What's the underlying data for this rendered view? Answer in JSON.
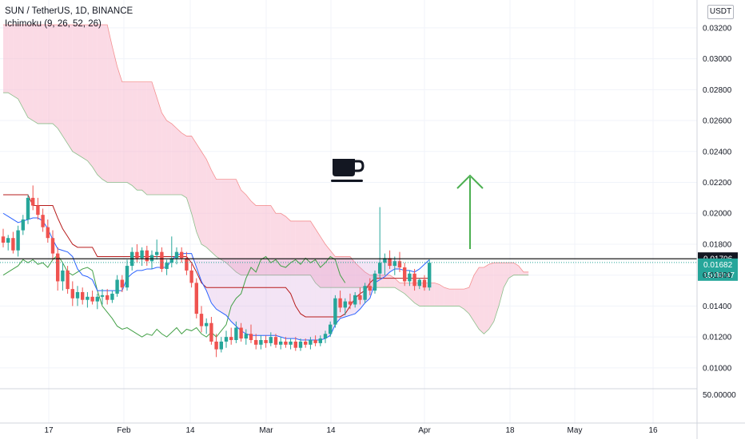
{
  "header": {
    "title": "SUN / TetherUS, 1D, BINANCE",
    "indicator": "Ichimoku (9, 26, 52, 26)"
  },
  "currency_button": "USDT",
  "price_tags": {
    "line_price": "0.01706",
    "last_price": "0.01682",
    "countdown": "15:00:47"
  },
  "colors": {
    "up": "#26a69a",
    "down": "#ef5350",
    "conversion": "#2962ff",
    "base": "#b71c1c",
    "lagging": "#43a047",
    "cloud_bear": "#f8bbd0",
    "cloud_bull": "#c8e6c9",
    "arrow": "#4caf50"
  },
  "icons": {
    "annotation": "coffee-cup-icon",
    "arrow": "up-arrow-icon"
  },
  "chart_data": {
    "type": "candlestick",
    "title": "SUN / TetherUS, 1D, BINANCE",
    "indicator": "Ichimoku (9, 26, 52, 26)",
    "yticks": [
      "0.03200",
      "0.03000",
      "0.02800",
      "0.02600",
      "0.02400",
      "0.02200",
      "0.02000",
      "0.01800",
      "0.01600",
      "0.01400",
      "0.01200",
      "0.01000"
    ],
    "ylim": [
      0.0086,
      0.0338
    ],
    "oscillator_tick": "50.00000",
    "xticks": [
      "17",
      "Feb",
      "14",
      "Mar",
      "14",
      "Apr",
      "18",
      "May",
      "16"
    ],
    "x_range": [
      "Jan 8",
      "May 20"
    ],
    "line_price": 0.01706,
    "last_price": 0.01682,
    "candles": [
      [
        0.0185,
        0.019,
        0.0178,
        0.0181
      ],
      [
        0.0181,
        0.0186,
        0.0176,
        0.0184
      ],
      [
        0.0184,
        0.0188,
        0.0174,
        0.0176
      ],
      [
        0.0176,
        0.0192,
        0.0172,
        0.0189
      ],
      [
        0.0189,
        0.0199,
        0.0186,
        0.0196
      ],
      [
        0.0196,
        0.0212,
        0.0193,
        0.021
      ],
      [
        0.021,
        0.0218,
        0.0202,
        0.0205
      ],
      [
        0.0205,
        0.021,
        0.0196,
        0.0199
      ],
      [
        0.0199,
        0.0203,
        0.0188,
        0.0191
      ],
      [
        0.0191,
        0.0196,
        0.0181,
        0.0184
      ],
      [
        0.0184,
        0.0189,
        0.017,
        0.0174
      ],
      [
        0.0174,
        0.0178,
        0.015,
        0.0156
      ],
      [
        0.0156,
        0.0168,
        0.015,
        0.0163
      ],
      [
        0.0163,
        0.0166,
        0.0148,
        0.0151
      ],
      [
        0.0151,
        0.0156,
        0.014,
        0.0145
      ],
      [
        0.0145,
        0.0153,
        0.014,
        0.0149
      ],
      [
        0.0149,
        0.0152,
        0.0141,
        0.0144
      ],
      [
        0.0144,
        0.0149,
        0.0139,
        0.0146
      ],
      [
        0.0146,
        0.015,
        0.0141,
        0.0143
      ],
      [
        0.0143,
        0.0148,
        0.0138,
        0.0146
      ],
      [
        0.0146,
        0.0151,
        0.0141,
        0.0147
      ],
      [
        0.0147,
        0.0151,
        0.0141,
        0.0144
      ],
      [
        0.0144,
        0.015,
        0.0142,
        0.0148
      ],
      [
        0.0148,
        0.016,
        0.0146,
        0.0157
      ],
      [
        0.0157,
        0.016,
        0.0149,
        0.0152
      ],
      [
        0.0152,
        0.017,
        0.015,
        0.0166
      ],
      [
        0.0166,
        0.0178,
        0.0163,
        0.0175
      ],
      [
        0.0175,
        0.018,
        0.0168,
        0.0171
      ],
      [
        0.0171,
        0.0178,
        0.0166,
        0.0176
      ],
      [
        0.0176,
        0.0179,
        0.0166,
        0.0169
      ],
      [
        0.0169,
        0.0176,
        0.0164,
        0.0173
      ],
      [
        0.0173,
        0.0183,
        0.017,
        0.0175
      ],
      [
        0.0175,
        0.0178,
        0.0162,
        0.0164
      ],
      [
        0.0164,
        0.017,
        0.016,
        0.0168
      ],
      [
        0.0168,
        0.0185,
        0.0165,
        0.0171
      ],
      [
        0.0171,
        0.0178,
        0.0167,
        0.0175
      ],
      [
        0.0175,
        0.0178,
        0.0168,
        0.0171
      ],
      [
        0.0171,
        0.0175,
        0.016,
        0.0163
      ],
      [
        0.0163,
        0.0167,
        0.0152,
        0.0155
      ],
      [
        0.0155,
        0.0158,
        0.0132,
        0.0135
      ],
      [
        0.0135,
        0.014,
        0.0123,
        0.0127
      ],
      [
        0.0127,
        0.0132,
        0.0122,
        0.0129
      ],
      [
        0.0129,
        0.0133,
        0.0115,
        0.0117
      ],
      [
        0.0117,
        0.0122,
        0.0107,
        0.0112
      ],
      [
        0.0112,
        0.012,
        0.011,
        0.0117
      ],
      [
        0.0117,
        0.0124,
        0.0113,
        0.012
      ],
      [
        0.012,
        0.0126,
        0.0115,
        0.0118
      ],
      [
        0.0118,
        0.013,
        0.0116,
        0.0126
      ],
      [
        0.0126,
        0.0129,
        0.0117,
        0.0119
      ],
      [
        0.0119,
        0.0125,
        0.0115,
        0.0122
      ],
      [
        0.0122,
        0.0128,
        0.0116,
        0.0118
      ],
      [
        0.0118,
        0.0122,
        0.0112,
        0.0115
      ],
      [
        0.0115,
        0.0121,
        0.0112,
        0.0118
      ],
      [
        0.0118,
        0.0121,
        0.0113,
        0.0116
      ],
      [
        0.0116,
        0.0123,
        0.0114,
        0.012
      ],
      [
        0.012,
        0.0122,
        0.0113,
        0.0115
      ],
      [
        0.0115,
        0.012,
        0.0112,
        0.0117
      ],
      [
        0.0117,
        0.012,
        0.0113,
        0.0115
      ],
      [
        0.0115,
        0.0119,
        0.0112,
        0.0117
      ],
      [
        0.0117,
        0.012,
        0.0111,
        0.0113
      ],
      [
        0.0113,
        0.0119,
        0.0111,
        0.0117
      ],
      [
        0.0117,
        0.0119,
        0.0113,
        0.0115
      ],
      [
        0.0115,
        0.012,
        0.0112,
        0.0118
      ],
      [
        0.0118,
        0.0121,
        0.0114,
        0.0116
      ],
      [
        0.0116,
        0.0121,
        0.0114,
        0.0119
      ],
      [
        0.0119,
        0.0124,
        0.0116,
        0.0122
      ],
      [
        0.0122,
        0.013,
        0.012,
        0.0128
      ],
      [
        0.0128,
        0.0147,
        0.0126,
        0.0145
      ],
      [
        0.0145,
        0.015,
        0.0136,
        0.0139
      ],
      [
        0.0139,
        0.0145,
        0.0134,
        0.0143
      ],
      [
        0.0143,
        0.0148,
        0.0138,
        0.0141
      ],
      [
        0.0141,
        0.0149,
        0.0139,
        0.0147
      ],
      [
        0.0147,
        0.0152,
        0.0141,
        0.0144
      ],
      [
        0.0144,
        0.0155,
        0.0142,
        0.0153
      ],
      [
        0.0153,
        0.0158,
        0.0147,
        0.015
      ],
      [
        0.015,
        0.0163,
        0.0148,
        0.0161
      ],
      [
        0.0161,
        0.0204,
        0.0158,
        0.0168
      ],
      [
        0.0168,
        0.0174,
        0.016,
        0.0171
      ],
      [
        0.0171,
        0.0176,
        0.0164,
        0.0166
      ],
      [
        0.0166,
        0.0172,
        0.016,
        0.0169
      ],
      [
        0.0169,
        0.0175,
        0.0162,
        0.0165
      ],
      [
        0.0165,
        0.0168,
        0.0153,
        0.0156
      ],
      [
        0.0156,
        0.0163,
        0.0153,
        0.0161
      ],
      [
        0.0161,
        0.0164,
        0.015,
        0.0153
      ],
      [
        0.0153,
        0.0158,
        0.0151,
        0.0157
      ],
      [
        0.0157,
        0.016,
        0.015,
        0.0152
      ],
      [
        0.0152,
        0.017,
        0.015,
        0.0168
      ]
    ],
    "conversion_line": [
      0.02,
      0.0198,
      0.0196,
      0.0194,
      0.0195,
      0.0196,
      0.0197,
      0.0197,
      0.0195,
      0.019,
      0.0183,
      0.0177,
      0.0176,
      0.0175,
      0.0172,
      0.0164,
      0.016,
      0.0159,
      0.0157,
      0.015,
      0.015,
      0.015,
      0.015,
      0.015,
      0.015,
      0.0158,
      0.0161,
      0.0163,
      0.0163,
      0.0164,
      0.0164,
      0.0165,
      0.0165,
      0.0165,
      0.017,
      0.0173,
      0.0174,
      0.0174,
      0.0174,
      0.0165,
      0.0156,
      0.015,
      0.0142,
      0.0138,
      0.0136,
      0.0134,
      0.013,
      0.0127,
      0.0124,
      0.0122,
      0.0121,
      0.0121,
      0.0121,
      0.0121,
      0.0121,
      0.0121,
      0.012,
      0.0119,
      0.0119,
      0.0119,
      0.0118,
      0.0118,
      0.0118,
      0.0118,
      0.0118,
      0.0119,
      0.0121,
      0.0128,
      0.0132,
      0.0133,
      0.0134,
      0.0135,
      0.0138,
      0.0142,
      0.0145,
      0.0155,
      0.0157,
      0.0159,
      0.0162,
      0.0164,
      0.0164,
      0.0163,
      0.0163,
      0.0162,
      0.0164,
      0.0167,
      0.017
    ],
    "base_line": [
      0.0212,
      0.0212,
      0.0212,
      0.0212,
      0.0212,
      0.0212,
      0.0205,
      0.0205,
      0.0205,
      0.0205,
      0.0205,
      0.0197,
      0.019,
      0.0185,
      0.018,
      0.0178,
      0.0178,
      0.0178,
      0.0178,
      0.0172,
      0.0172,
      0.0172,
      0.0172,
      0.0172,
      0.0172,
      0.0172,
      0.0172,
      0.0172,
      0.0172,
      0.0172,
      0.0172,
      0.0172,
      0.0172,
      0.0172,
      0.0172,
      0.0172,
      0.0172,
      0.0172,
      0.0168,
      0.0162,
      0.0155,
      0.0152,
      0.0152,
      0.0152,
      0.0152,
      0.0152,
      0.0152,
      0.0152,
      0.0152,
      0.0152,
      0.0152,
      0.0152,
      0.0152,
      0.0152,
      0.0152,
      0.0152,
      0.0152,
      0.0152,
      0.0148,
      0.014,
      0.0135,
      0.0133,
      0.0133,
      0.0133,
      0.0133,
      0.0133,
      0.0133,
      0.0133,
      0.0133,
      0.0135,
      0.014,
      0.0145,
      0.0148,
      0.015,
      0.0155,
      0.0158,
      0.0158,
      0.0158,
      0.0158,
      0.0158,
      0.0158,
      0.0158,
      0.0158,
      0.0158,
      0.0158,
      0.0158,
      0.0158
    ],
    "lagging_span": [
      0.016,
      0.0162,
      0.0164,
      0.0166,
      0.017,
      0.0168,
      0.017,
      0.0167,
      0.0168,
      0.0165,
      0.017,
      0.0173,
      0.0168,
      0.0162,
      0.016,
      0.0162,
      0.0164,
      0.0165,
      0.0163,
      0.015,
      0.014,
      0.0136,
      0.0132,
      0.0127,
      0.0125,
      0.0126,
      0.0124,
      0.0122,
      0.012,
      0.0122,
      0.0121,
      0.0125,
      0.0122,
      0.012,
      0.0123,
      0.0126,
      0.0122,
      0.0125,
      0.0124,
      0.0126,
      0.0122,
      0.012,
      0.0123,
      0.012,
      0.0124,
      0.0128,
      0.014,
      0.0145,
      0.0148,
      0.0158,
      0.0165,
      0.0162,
      0.017,
      0.0172,
      0.0168,
      0.017,
      0.0166,
      0.0165,
      0.0168,
      0.017,
      0.0167,
      0.0171,
      0.0168,
      0.017,
      0.0165,
      0.0168,
      0.0172,
      0.017,
      0.016,
      0.0155
    ],
    "cloud_top": [
      0.0322,
      0.0322,
      0.0322,
      0.0322,
      0.0322,
      0.0322,
      0.0322,
      0.0322,
      0.0322,
      0.0322,
      0.0322,
      0.0322,
      0.0322,
      0.0322,
      0.0322,
      0.0322,
      0.0322,
      0.0322,
      0.0322,
      0.0322,
      0.0322,
      0.0322,
      0.0308,
      0.0295,
      0.0285,
      0.0285,
      0.0285,
      0.0285,
      0.0285,
      0.0285,
      0.0285,
      0.0275,
      0.0265,
      0.026,
      0.0258,
      0.0255,
      0.0252,
      0.025,
      0.025,
      0.0245,
      0.024,
      0.0235,
      0.0228,
      0.0222,
      0.0222,
      0.0222,
      0.0222,
      0.0222,
      0.0215,
      0.0212,
      0.0208,
      0.0205,
      0.0205,
      0.0205,
      0.0205,
      0.02,
      0.02,
      0.0198,
      0.0195,
      0.0195,
      0.0195,
      0.0195,
      0.0195,
      0.019,
      0.0185,
      0.018,
      0.0176,
      0.0172,
      0.0172,
      0.0172,
      0.0172,
      0.0168,
      0.0165,
      0.0162,
      0.016,
      0.016,
      0.016,
      0.016,
      0.016,
      0.0158,
      0.0155,
      0.0155,
      0.0155,
      0.0155,
      0.0155,
      0.0155,
      0.0155,
      0.0155,
      0.0154,
      0.0152,
      0.0151,
      0.0151,
      0.0151,
      0.0151,
      0.0152,
      0.016,
      0.0165,
      0.0165,
      0.0167,
      0.0168,
      0.0168,
      0.0168,
      0.0168,
      0.0168,
      0.0166,
      0.0162,
      0.0162
    ],
    "cloud_bottom": [
      0.0278,
      0.0278,
      0.0276,
      0.0274,
      0.0268,
      0.0262,
      0.026,
      0.0258,
      0.0258,
      0.0258,
      0.0258,
      0.0255,
      0.025,
      0.0245,
      0.024,
      0.0238,
      0.0236,
      0.0234,
      0.023,
      0.0225,
      0.0222,
      0.022,
      0.022,
      0.022,
      0.022,
      0.022,
      0.0218,
      0.0215,
      0.0215,
      0.0212,
      0.0212,
      0.0212,
      0.0212,
      0.0212,
      0.0212,
      0.0212,
      0.0212,
      0.021,
      0.02,
      0.0188,
      0.018,
      0.0178,
      0.0175,
      0.0172,
      0.017,
      0.0168,
      0.0165,
      0.0162,
      0.016,
      0.016,
      0.016,
      0.016,
      0.016,
      0.016,
      0.016,
      0.016,
      0.016,
      0.016,
      0.016,
      0.016,
      0.016,
      0.016,
      0.016,
      0.0155,
      0.0152,
      0.0152,
      0.0152,
      0.0152,
      0.0152,
      0.0152,
      0.0152,
      0.0152,
      0.0152,
      0.0152,
      0.0152,
      0.0152,
      0.0152,
      0.0152,
      0.0152,
      0.0152,
      0.015,
      0.0148,
      0.0145,
      0.0142,
      0.014,
      0.014,
      0.014,
      0.014,
      0.014,
      0.014,
      0.014,
      0.014,
      0.014,
      0.0138,
      0.0135,
      0.013,
      0.0125,
      0.0122,
      0.0125,
      0.013,
      0.014,
      0.0152,
      0.0158,
      0.016,
      0.016,
      0.016,
      0.016
    ]
  }
}
